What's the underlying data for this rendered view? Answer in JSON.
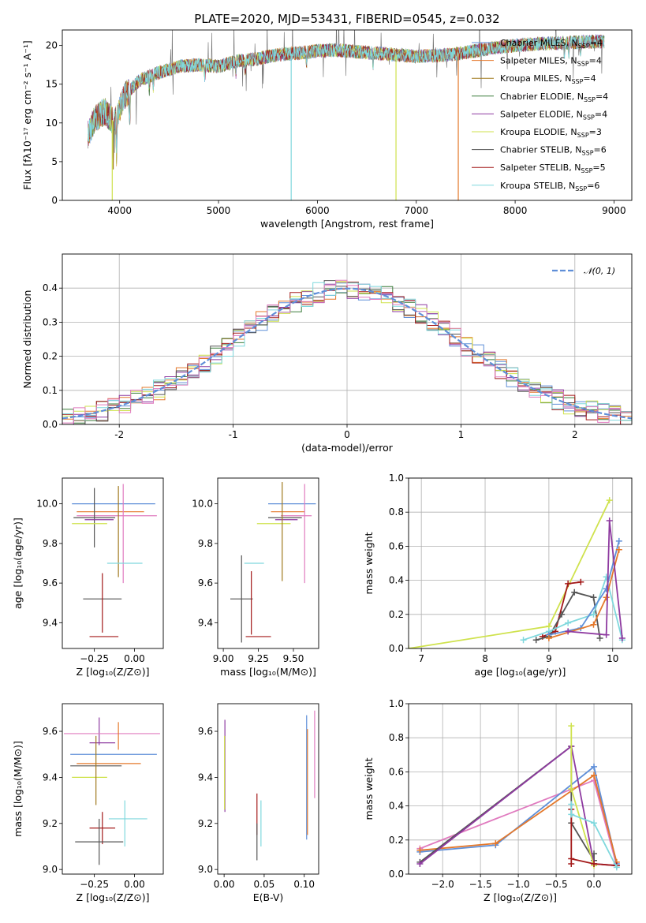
{
  "title": "PLATE=2020, MJD=53431, FIBERID=0545, z=0.032",
  "colors": {
    "chabrier_miles": "#5f8fd8",
    "salpeter_miles": "#e4782b",
    "kroupa_miles": "#a07a1f",
    "chabrier_elodie": "#3c7d3c",
    "salpeter_elodie": "#8e3aa0",
    "kroupa_elodie": "#cfe24d",
    "chabrier_stelib": "#555555",
    "salpeter_stelib": "#a31919",
    "kroupa_stelib": "#7fd8dd",
    "pink": "#e07bbf",
    "gauss": "#5f8fd8"
  },
  "chart_data": [
    {
      "id": "spectrum",
      "type": "line",
      "title": "PLATE=2020, MJD=53431, FIBERID=0545, z=0.032",
      "xlabel": "wavelength [Angstrom, rest frame]",
      "ylabel": "Flux [fλ10⁻¹⁷ erg cm⁻² s⁻¹ A⁻¹]",
      "xlim": [
        3420,
        9180
      ],
      "ylim": [
        0,
        22
      ],
      "xticks": [
        4000,
        5000,
        6000,
        7000,
        8000,
        9000
      ],
      "yticks": [
        0,
        5,
        10,
        15,
        20
      ],
      "legend_position": "upper-right",
      "series": [
        {
          "name": "Chabrier MILES, N_SSP=4",
          "label_main": "Chabrier MILES, N",
          "label_sub": "SSP",
          "label_tail": "=4",
          "color": "#5f8fd8"
        },
        {
          "name": "Salpeter MILES, N_SSP=4",
          "label_main": "Salpeter MILES, N",
          "label_sub": "SSP",
          "label_tail": "=4",
          "color": "#e4782b"
        },
        {
          "name": "Kroupa MILES, N_SSP=4",
          "label_main": "Kroupa MILES, N",
          "label_sub": "SSP",
          "label_tail": "=4",
          "color": "#a07a1f"
        },
        {
          "name": "Chabrier ELODIE, N_SSP=4",
          "label_main": "Chabrier ELODIE, N",
          "label_sub": "SSP",
          "label_tail": "=4",
          "color": "#3c7d3c"
        },
        {
          "name": "Salpeter ELODIE, N_SSP=4",
          "label_main": "Salpeter ELODIE, N",
          "label_sub": "SSP",
          "label_tail": "=4",
          "color": "#8e3aa0"
        },
        {
          "name": "Kroupa ELODIE, N_SSP=3",
          "label_main": "Kroupa ELODIE, N",
          "label_sub": "SSP",
          "label_tail": "=3",
          "color": "#cfe24d"
        },
        {
          "name": "Chabrier STELIB, N_SSP=6",
          "label_main": "Chabrier STELIB, N",
          "label_sub": "SSP",
          "label_tail": "=6",
          "color": "#555555"
        },
        {
          "name": "Salpeter STELIB, N_SSP=5",
          "label_main": "Salpeter STELIB, N",
          "label_sub": "SSP",
          "label_tail": "=5",
          "color": "#a31919"
        },
        {
          "name": "Kroupa STELIB, N_SSP=6",
          "label_main": "Kroupa STELIB, N",
          "label_sub": "SSP",
          "label_tail": "=6",
          "color": "#7fd8dd"
        }
      ],
      "continuum": {
        "x": [
          3680,
          3750,
          3850,
          3950,
          4050,
          4200,
          4400,
          4600,
          4800,
          5000,
          5200,
          5400,
          5600,
          5800,
          6000,
          6200,
          6400,
          6600,
          6800,
          7000,
          7200,
          7400,
          7600,
          7800,
          8000,
          8200,
          8400,
          8600,
          8800,
          8900
        ],
        "y": [
          8.5,
          10.5,
          11.5,
          10.0,
          13.5,
          15.5,
          16.5,
          17.3,
          17.5,
          17.3,
          18.0,
          18.3,
          18.8,
          19.0,
          19.3,
          19.4,
          19.2,
          19.0,
          18.8,
          18.6,
          18.7,
          18.9,
          19.3,
          19.7,
          20.0,
          20.2,
          20.3,
          20.4,
          20.5,
          20.5
        ]
      },
      "drops": [
        {
          "x": 3925,
          "to": 0,
          "color": "#cfe24d"
        },
        {
          "x": 3935,
          "to": 4,
          "color": "#a07a1f"
        },
        {
          "x": 5735,
          "to": 0,
          "color": "#7fd8dd"
        },
        {
          "x": 6795,
          "to": 0,
          "color": "#cfe24d"
        },
        {
          "x": 7425,
          "to": 0,
          "color": "#e4782b"
        }
      ]
    },
    {
      "id": "residuals",
      "type": "histogram",
      "xlabel": "(data-model)/error",
      "ylabel": "Normed distribution",
      "xlim": [
        -2.5,
        2.5
      ],
      "ylim": [
        0,
        0.5
      ],
      "xticks": [
        -2,
        -1,
        0,
        1,
        2
      ],
      "yticks": [
        0.0,
        0.1,
        0.2,
        0.3,
        0.4
      ],
      "grid": true,
      "legend_position": "upper-right",
      "gauss_label": "𝒩(0, 1)",
      "bin_width": 0.1,
      "histogram_colors": [
        "#5f8fd8",
        "#e4782b",
        "#3c7d3c",
        "#8e3aa0",
        "#cfe24d",
        "#555555",
        "#a31919",
        "#7fd8dd",
        "#e07bbf"
      ]
    },
    {
      "id": "age_vs_Z",
      "type": "errorbar",
      "xlabel": "Z [log₁₀(Z/Z⊙)]",
      "ylabel": "age  [log₁₀(age/yr)]",
      "xlim": [
        -0.45,
        0.18
      ],
      "ylim": [
        9.27,
        10.13
      ],
      "xticks": [
        -0.25,
        0.0
      ],
      "xtick_labels": [
        "−0.25",
        "0.00"
      ],
      "yticks": [
        9.4,
        9.6,
        9.8,
        10.0
      ],
      "points": [
        {
          "x": -0.13,
          "y": 10.0,
          "xerr": 0.26,
          "yerr": 0.0,
          "color": "#5f8fd8"
        },
        {
          "x": -0.15,
          "y": 9.96,
          "xerr": 0.21,
          "yerr": 0.0,
          "color": "#e4782b"
        },
        {
          "x": -0.11,
          "y": 9.94,
          "xerr": 0.25,
          "yerr": 0.0,
          "color": "#e07bbf"
        },
        {
          "x": -0.25,
          "y": 9.93,
          "xerr": 0.13,
          "yerr": 0.15,
          "color": "#555555"
        },
        {
          "x": -0.22,
          "y": 9.92,
          "xerr": 0.09,
          "yerr": 0.0,
          "color": "#8e3aa0"
        },
        {
          "x": -0.28,
          "y": 9.9,
          "xerr": 0.11,
          "yerr": 0.0,
          "color": "#cfe24d"
        },
        {
          "x": -0.1,
          "y": 9.86,
          "xerr": 0.0,
          "yerr": 0.23,
          "color": "#a07a1f"
        },
        {
          "x": -0.07,
          "y": 9.85,
          "xerr": 0.0,
          "yerr": 0.25,
          "color": "#e07bbf"
        },
        {
          "x": -0.06,
          "y": 9.7,
          "xerr": 0.11,
          "yerr": 0.0,
          "color": "#7fd8dd"
        },
        {
          "x": -0.2,
          "y": 9.52,
          "xerr": 0.12,
          "yerr": 0.0,
          "color": "#555555"
        },
        {
          "x": -0.2,
          "y": 9.5,
          "xerr": 0.0,
          "yerr": 0.15,
          "color": "#a31919"
        },
        {
          "x": -0.19,
          "y": 9.33,
          "xerr": 0.09,
          "yerr": 0.0,
          "color": "#a31919"
        }
      ]
    },
    {
      "id": "age_vs_mass",
      "type": "errorbar",
      "xlabel": "mass [log₁₀(M/M⊙)]",
      "xlim": [
        8.96,
        9.68
      ],
      "ylim": [
        9.27,
        10.13
      ],
      "xticks": [
        9.0,
        9.25,
        9.5
      ],
      "xtick_labels": [
        "9.00",
        "9.25",
        "9.50"
      ],
      "yticks": [
        9.4,
        9.6,
        9.8,
        10.0
      ],
      "points": [
        {
          "x": 9.49,
          "y": 10.0,
          "xerr": 0.17,
          "yerr": 0.0,
          "color": "#5f8fd8"
        },
        {
          "x": 9.46,
          "y": 9.96,
          "xerr": 0.12,
          "yerr": 0.0,
          "color": "#e4782b"
        },
        {
          "x": 9.52,
          "y": 9.94,
          "xerr": 0.11,
          "yerr": 0.0,
          "color": "#e07bbf"
        },
        {
          "x": 9.44,
          "y": 9.93,
          "xerr": 0.12,
          "yerr": 0.0,
          "color": "#555555"
        },
        {
          "x": 9.45,
          "y": 9.92,
          "xerr": 0.08,
          "yerr": 0.0,
          "color": "#8e3aa0"
        },
        {
          "x": 9.36,
          "y": 9.9,
          "xerr": 0.12,
          "yerr": 0.0,
          "color": "#cfe24d"
        },
        {
          "x": 9.42,
          "y": 9.86,
          "xerr": 0.0,
          "yerr": 0.25,
          "color": "#a07a1f"
        },
        {
          "x": 9.58,
          "y": 9.85,
          "xerr": 0.0,
          "yerr": 0.25,
          "color": "#e07bbf"
        },
        {
          "x": 9.22,
          "y": 9.7,
          "xerr": 0.07,
          "yerr": 0.0,
          "color": "#7fd8dd"
        },
        {
          "x": 9.13,
          "y": 9.52,
          "xerr": 0.08,
          "yerr": 0.22,
          "color": "#555555"
        },
        {
          "x": 9.2,
          "y": 9.5,
          "xerr": 0.0,
          "yerr": 0.16,
          "color": "#a31919"
        },
        {
          "x": 9.25,
          "y": 9.33,
          "xerr": 0.09,
          "yerr": 0.0,
          "color": "#a31919"
        }
      ]
    },
    {
      "id": "weight_vs_age",
      "type": "line",
      "xlabel": "age  [log₁₀(age/yr)]",
      "ylabel": "mass weight",
      "xlim": [
        6.8,
        10.3
      ],
      "ylim": [
        0,
        1.0
      ],
      "xticks": [
        7,
        8,
        9,
        10
      ],
      "yticks": [
        0.0,
        0.2,
        0.4,
        0.6,
        0.8,
        1.0
      ],
      "grid": true,
      "series": [
        {
          "color": "#cfe24d",
          "x": [
            6.8,
            9.0,
            9.95
          ],
          "y": [
            0.0,
            0.13,
            0.87
          ]
        },
        {
          "color": "#a31919",
          "x": [
            8.9,
            9.1,
            9.3,
            9.5
          ],
          "y": [
            0.07,
            0.1,
            0.38,
            0.39
          ]
        },
        {
          "color": "#555555",
          "x": [
            8.8,
            9.0,
            9.2,
            9.4,
            9.7,
            9.8
          ],
          "y": [
            0.05,
            0.07,
            0.2,
            0.33,
            0.3,
            0.06
          ]
        },
        {
          "color": "#7fd8dd",
          "x": [
            8.6,
            9.0,
            9.3,
            9.7,
            9.9,
            10.15
          ],
          "y": [
            0.05,
            0.1,
            0.15,
            0.2,
            0.42,
            0.05
          ]
        },
        {
          "color": "#5f8fd8",
          "x": [
            9.0,
            9.5,
            9.9,
            10.1
          ],
          "y": [
            0.08,
            0.12,
            0.35,
            0.63
          ]
        },
        {
          "color": "#e4782b",
          "x": [
            9.0,
            9.7,
            9.9,
            10.1
          ],
          "y": [
            0.06,
            0.14,
            0.3,
            0.58
          ]
        },
        {
          "color": "#8e3aa0",
          "x": [
            9.3,
            9.9,
            9.95,
            10.15
          ],
          "y": [
            0.1,
            0.08,
            0.75,
            0.06
          ]
        }
      ]
    },
    {
      "id": "mass_vs_Z",
      "type": "errorbar",
      "xlabel": "Z [log₁₀(Z/Z⊙)]",
      "ylabel": "mass [log₁₀(M/M⊙)]",
      "xlim": [
        -0.45,
        0.18
      ],
      "ylim": [
        8.98,
        9.72
      ],
      "xticks": [
        -0.25,
        0.0
      ],
      "xtick_labels": [
        "−0.25",
        "0.00"
      ],
      "yticks": [
        9.0,
        9.2,
        9.4,
        9.6
      ],
      "points": [
        {
          "x": -0.22,
          "y": 9.6,
          "xerr": 0.0,
          "yerr": 0.06,
          "color": "#8e3aa0"
        },
        {
          "x": -0.14,
          "y": 9.59,
          "xerr": 0.3,
          "yerr": 0.0,
          "color": "#e07bbf"
        },
        {
          "x": -0.1,
          "y": 9.58,
          "xerr": 0.0,
          "yerr": 0.06,
          "color": "#e4782b"
        },
        {
          "x": -0.2,
          "y": 9.55,
          "xerr": 0.08,
          "yerr": 0.0,
          "color": "#8e3aa0"
        },
        {
          "x": -0.13,
          "y": 9.5,
          "xerr": 0.27,
          "yerr": 0.0,
          "color": "#5f8fd8"
        },
        {
          "x": -0.16,
          "y": 9.46,
          "xerr": 0.2,
          "yerr": 0.0,
          "color": "#e4782b"
        },
        {
          "x": -0.24,
          "y": 9.45,
          "xerr": 0.16,
          "yerr": 0.0,
          "color": "#555555"
        },
        {
          "x": -0.28,
          "y": 9.4,
          "xerr": 0.11,
          "yerr": 0.0,
          "color": "#cfe24d"
        },
        {
          "x": -0.24,
          "y": 9.43,
          "xerr": 0.0,
          "yerr": 0.15,
          "color": "#a07a1f"
        },
        {
          "x": -0.04,
          "y": 9.22,
          "xerr": 0.12,
          "yerr": 0.0,
          "color": "#7fd8dd"
        },
        {
          "x": -0.06,
          "y": 9.2,
          "xerr": 0.0,
          "yerr": 0.1,
          "color": "#7fd8dd"
        },
        {
          "x": -0.2,
          "y": 9.18,
          "xerr": 0.08,
          "yerr": 0.07,
          "color": "#a31919"
        },
        {
          "x": -0.22,
          "y": 9.12,
          "xerr": 0.15,
          "yerr": 0.1,
          "color": "#555555"
        }
      ]
    },
    {
      "id": "mass_vs_ebv",
      "type": "errorbar",
      "xlabel": "E(B-V)",
      "xlim": [
        -0.008,
        0.118
      ],
      "ylim": [
        8.98,
        9.72
      ],
      "xticks": [
        0.0,
        0.05,
        0.1
      ],
      "xtick_labels": [
        "0.00",
        "0.05",
        "0.10"
      ],
      "yticks": [
        9.0,
        9.2,
        9.4,
        9.6
      ],
      "points": [
        {
          "x": 0.001,
          "y": 9.45,
          "xerr": 0.0,
          "yerr": 0.2,
          "color": "#8e3aa0"
        },
        {
          "x": 0.0005,
          "y": 9.42,
          "xerr": 0.0,
          "yerr": 0.16,
          "color": "#cfe24d"
        },
        {
          "x": 0.041,
          "y": 9.24,
          "xerr": 0.0,
          "yerr": 0.09,
          "color": "#a31919"
        },
        {
          "x": 0.041,
          "y": 9.12,
          "xerr": 0.0,
          "yerr": 0.08,
          "color": "#555555"
        },
        {
          "x": 0.046,
          "y": 9.2,
          "xerr": 0.0,
          "yerr": 0.1,
          "color": "#7fd8dd"
        },
        {
          "x": 0.103,
          "y": 9.4,
          "xerr": 0.0,
          "yerr": 0.27,
          "color": "#5f8fd8"
        },
        {
          "x": 0.104,
          "y": 9.38,
          "xerr": 0.0,
          "yerr": 0.23,
          "color": "#e4782b"
        },
        {
          "x": 0.113,
          "y": 9.5,
          "xerr": 0.0,
          "yerr": 0.19,
          "color": "#e07bbf"
        }
      ]
    },
    {
      "id": "weight_vs_Z",
      "type": "line",
      "xlabel": "Z [log₁₀(Z/Z⊙)]",
      "ylabel": "mass weight",
      "xlim": [
        -2.45,
        0.5
      ],
      "ylim": [
        0,
        1.0
      ],
      "xticks": [
        -2.0,
        -1.5,
        -1.0,
        -0.5,
        0.0
      ],
      "xtick_labels": [
        "−2.0",
        "−1.5",
        "−1.0",
        "−0.5",
        "0.0"
      ],
      "yticks": [
        0.0,
        0.2,
        0.4,
        0.6,
        0.8,
        1.0
      ],
      "grid": true,
      "series": [
        {
          "color": "#e07bbf",
          "x": [
            -2.3,
            0.0,
            0.3
          ],
          "y": [
            0.15,
            0.55,
            0.05
          ]
        },
        {
          "color": "#5f8fd8",
          "x": [
            -2.3,
            -1.3,
            0.0,
            0.3
          ],
          "y": [
            0.13,
            0.17,
            0.63,
            0.06
          ]
        },
        {
          "color": "#e4782b",
          "x": [
            -2.3,
            -1.3,
            0.0,
            0.3
          ],
          "y": [
            0.14,
            0.18,
            0.58,
            0.07
          ]
        },
        {
          "color": "#555555",
          "x": [
            -2.3,
            -0.3,
            -0.3,
            0.0,
            0.0
          ],
          "y": [
            0.07,
            0.75,
            0.3,
            0.08,
            0.12
          ]
        },
        {
          "color": "#8e3aa0",
          "x": [
            -2.3,
            -0.3,
            0.0,
            0.3
          ],
          "y": [
            0.06,
            0.75,
            0.06,
            0.05
          ]
        },
        {
          "color": "#cfe24d",
          "x": [
            -0.3,
            -0.3,
            0.0
          ],
          "y": [
            0.87,
            0.5,
            0.05
          ]
        },
        {
          "color": "#a31919",
          "x": [
            -0.3,
            -0.3,
            -0.3,
            0.0,
            0.3
          ],
          "y": [
            0.38,
            0.06,
            0.09,
            0.06,
            0.05
          ]
        },
        {
          "color": "#7fd8dd",
          "x": [
            -0.3,
            -0.3,
            0.0,
            0.3
          ],
          "y": [
            0.41,
            0.35,
            0.3,
            0.04
          ]
        }
      ]
    }
  ]
}
